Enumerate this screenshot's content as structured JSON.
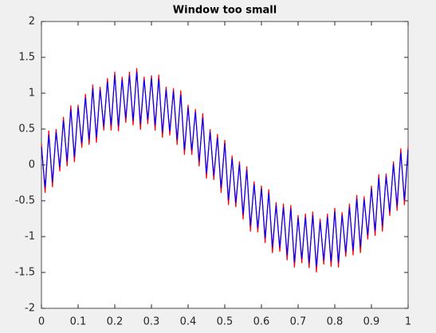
{
  "chart_data": {
    "type": "line",
    "title": "Window too small",
    "x": [
      0,
      0.01,
      0.02,
      0.03,
      0.04,
      0.05,
      0.06,
      0.07,
      0.08,
      0.09,
      0.1,
      0.11,
      0.12,
      0.13,
      0.14,
      0.15,
      0.16,
      0.17,
      0.18,
      0.19,
      0.2,
      0.21,
      0.22,
      0.23,
      0.24,
      0.25,
      0.26,
      0.27,
      0.28,
      0.29,
      0.3,
      0.31,
      0.32,
      0.33,
      0.34,
      0.35,
      0.36,
      0.37,
      0.38,
      0.39,
      0.4,
      0.41,
      0.42,
      0.43,
      0.44,
      0.45,
      0.46,
      0.47,
      0.48,
      0.49,
      0.5,
      0.51,
      0.52,
      0.53,
      0.54,
      0.55,
      0.56,
      0.57,
      0.58,
      0.59,
      0.6,
      0.61,
      0.62,
      0.63,
      0.64,
      0.65,
      0.66,
      0.67,
      0.68,
      0.69,
      0.7,
      0.71,
      0.72,
      0.73,
      0.74,
      0.75,
      0.76,
      0.77,
      0.78,
      0.79,
      0.8,
      0.81,
      0.82,
      0.83,
      0.84,
      0.85,
      0.86,
      0.87,
      0.88,
      0.89,
      0.9,
      0.91,
      0.92,
      0.93,
      0.94,
      0.95,
      0.96,
      0.97,
      0.98,
      0.99,
      1
    ],
    "series": [
      {
        "color": "#ff0000",
        "values": [
          0.3,
          -0.39,
          0.48,
          -0.31,
          0.5,
          -0.09,
          0.67,
          -0.02,
          0.83,
          0.04,
          0.84,
          0.24,
          0.99,
          0.28,
          1.12,
          0.31,
          1.09,
          0.48,
          1.21,
          0.48,
          1.3,
          0.47,
          1.23,
          0.59,
          1.3,
          0.55,
          1.35,
          0.49,
          1.23,
          0.57,
          1.25,
          0.48,
          1.26,
          0.38,
          1.09,
          0.41,
          1.07,
          0.28,
          1.04,
          0.14,
          0.84,
          0.14,
          0.78,
          -0.02,
          0.72,
          -0.19,
          0.5,
          -0.21,
          0.43,
          -0.39,
          0.35,
          -0.56,
          0.13,
          -0.59,
          0.05,
          -0.76,
          -0.02,
          -0.93,
          -0.23,
          -0.94,
          -0.29,
          -1.09,
          -0.34,
          -1.23,
          -0.52,
          -1.21,
          -0.54,
          -1.33,
          -0.56,
          -1.43,
          -0.7,
          -1.37,
          -0.68,
          -1.44,
          -0.65,
          -1.5,
          -0.75,
          -1.39,
          -0.68,
          -1.42,
          -0.6,
          -1.43,
          -0.66,
          -1.28,
          -0.54,
          -1.26,
          -0.42,
          -1.23,
          -0.44,
          -1.04,
          -0.29,
          -0.99,
          -0.13,
          -0.93,
          -0.12,
          -0.71,
          0.05,
          -0.64,
          0.23,
          -0.56,
          0.25
        ]
      },
      {
        "color": "#0000ff",
        "values": [
          0.25,
          -0.32,
          0.42,
          -0.24,
          0.46,
          -0.03,
          0.62,
          0.05,
          0.78,
          0.11,
          0.8,
          0.3,
          0.94,
          0.35,
          1.07,
          0.38,
          1.05,
          0.54,
          1.16,
          0.55,
          1.25,
          0.54,
          1.19,
          0.65,
          1.25,
          0.62,
          1.3,
          0.57,
          1.19,
          0.63,
          1.21,
          0.55,
          1.2,
          0.45,
          1.05,
          0.47,
          1.03,
          0.35,
          0.98,
          0.21,
          0.8,
          0.2,
          0.74,
          0.05,
          0.66,
          -0.12,
          0.46,
          -0.15,
          0.38,
          -0.32,
          0.3,
          -0.49,
          0.09,
          -0.53,
          0.01,
          -0.69,
          -0.07,
          -0.85,
          -0.27,
          -0.88,
          -0.33,
          -1.02,
          -0.39,
          -1.15,
          -0.56,
          -1.15,
          -0.59,
          -1.26,
          -0.61,
          -1.36,
          -0.74,
          -1.31,
          -0.73,
          -1.37,
          -0.7,
          -1.42,
          -0.79,
          -1.33,
          -0.73,
          -1.35,
          -0.65,
          -1.36,
          -0.7,
          -1.22,
          -0.59,
          -1.19,
          -0.47,
          -1.15,
          -0.48,
          -0.98,
          -0.33,
          -0.92,
          -0.18,
          -0.85,
          -0.16,
          -0.65,
          0.01,
          -0.57,
          0.17,
          -0.49,
          0.21
        ]
      }
    ],
    "xlim": [
      0,
      1
    ],
    "xticks": [
      0,
      0.1,
      0.2,
      0.3,
      0.4,
      0.5,
      0.6,
      0.7,
      0.8,
      0.9,
      1
    ],
    "ylim": [
      -2,
      2
    ],
    "yticks": [
      -2,
      -1.5,
      -1,
      -0.5,
      0,
      0.5,
      1,
      1.5,
      2
    ]
  }
}
